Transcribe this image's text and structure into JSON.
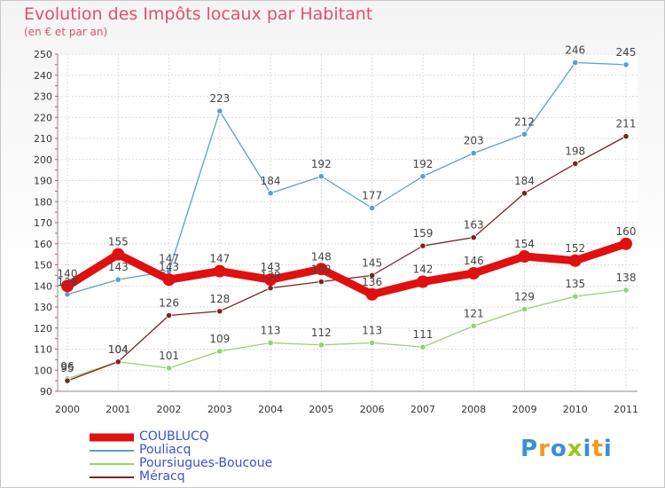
{
  "title": "Evolution des Impôts locaux par Habitant",
  "subtitle": "(en € et par an)",
  "logo": {
    "letters": [
      "P",
      "r",
      "o",
      "x",
      "i",
      "t",
      "i"
    ],
    "colors": [
      "#3a8fd8",
      "#f29a1a",
      "#3a8fd8",
      "#9ac81e",
      "#3a8fd8",
      "#f29a1a",
      "#3a8fd8"
    ]
  },
  "chart_data": {
    "type": "line",
    "x": [
      2000,
      2001,
      2002,
      2003,
      2004,
      2005,
      2006,
      2007,
      2008,
      2009,
      2010,
      2011
    ],
    "ylim": [
      90,
      250
    ],
    "yticks": [
      90,
      100,
      110,
      120,
      130,
      140,
      150,
      160,
      170,
      180,
      190,
      200,
      210,
      220,
      230,
      240,
      250
    ],
    "grid": true,
    "legend_position": "bottom-left",
    "series": [
      {
        "name": "COUBLUCQ",
        "color": "#e01010",
        "values": [
          140,
          155,
          143,
          147,
          143,
          148,
          136,
          142,
          146,
          154,
          152,
          160
        ],
        "labels": [
          "140",
          "155",
          "143",
          "147",
          "143",
          "148",
          "136",
          "142",
          "146",
          "154",
          "152",
          "160"
        ]
      },
      {
        "name": "Pouliacq",
        "color": "#5a9fd0",
        "values": [
          136,
          143,
          147,
          223,
          184,
          192,
          177,
          192,
          203,
          212,
          246,
          245
        ],
        "labels": [
          "136",
          "143",
          "147",
          "223",
          "184",
          "192",
          "177",
          "192",
          "203",
          "212",
          "246",
          "245"
        ]
      },
      {
        "name": "Poursiugues-Boucoue",
        "color": "#98d070",
        "values": [
          96,
          104,
          101,
          109,
          113,
          112,
          113,
          111,
          121,
          129,
          135,
          138
        ],
        "labels": [
          "96",
          "104",
          "101",
          "109",
          "113",
          "112",
          "113",
          "111",
          "121",
          "129",
          "135",
          "138"
        ]
      },
      {
        "name": "Méracq",
        "color": "#7a2424",
        "values": [
          95,
          104,
          126,
          128,
          139,
          142,
          145,
          159,
          163,
          184,
          198,
          211
        ],
        "labels": [
          "95",
          "104",
          "126",
          "128",
          "139",
          "142",
          "145",
          "159",
          "163",
          "184",
          "198",
          "211"
        ]
      }
    ]
  }
}
